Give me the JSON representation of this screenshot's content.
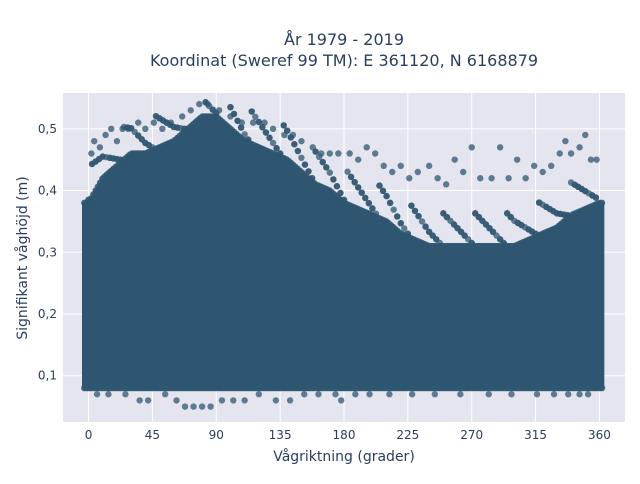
{
  "chart_data": {
    "type": "scatter",
    "title_line1": "År 1979 - 2019",
    "title_line2": "Koordinat (Sweref 99 TM): E 361120, N 6168879",
    "xlabel": "Vågriktning (grader)",
    "ylabel": "Signifikant våghöjd (m)",
    "xlim": [
      -18,
      378
    ],
    "ylim": [
      0.025,
      0.558
    ],
    "x_ticks": [
      0,
      45,
      90,
      135,
      180,
      225,
      270,
      315,
      360
    ],
    "x_tick_labels": [
      "0",
      "45",
      "90",
      "135",
      "180",
      "225",
      "270",
      "315",
      "360"
    ],
    "y_ticks": [
      0.1,
      0.2,
      0.3,
      0.4,
      0.5
    ],
    "y_tick_labels": [
      "0,1",
      "0,2",
      "0,3",
      "0,4",
      "0,5"
    ],
    "grid": true,
    "marker_color": "#2f5670",
    "plot_background": "#e5e5ef",
    "dense_band": {
      "x": [
        0,
        10,
        20,
        30,
        40,
        50,
        60,
        70,
        80,
        90,
        100,
        110,
        120,
        130,
        140,
        150,
        160,
        170,
        180,
        190,
        200,
        210,
        220,
        230,
        240,
        250,
        260,
        270,
        280,
        290,
        300,
        310,
        320,
        330,
        340,
        350,
        360
      ],
      "y_low": [
        0.08,
        0.08,
        0.08,
        0.08,
        0.08,
        0.08,
        0.08,
        0.08,
        0.08,
        0.08,
        0.08,
        0.08,
        0.08,
        0.08,
        0.08,
        0.08,
        0.08,
        0.08,
        0.08,
        0.08,
        0.08,
        0.08,
        0.08,
        0.08,
        0.08,
        0.08,
        0.08,
        0.08,
        0.08,
        0.08,
        0.08,
        0.08,
        0.08,
        0.08,
        0.08,
        0.08,
        0.08
      ],
      "y_high": [
        0.38,
        0.42,
        0.44,
        0.46,
        0.46,
        0.47,
        0.48,
        0.5,
        0.52,
        0.52,
        0.5,
        0.48,
        0.47,
        0.46,
        0.45,
        0.43,
        0.41,
        0.4,
        0.38,
        0.37,
        0.36,
        0.35,
        0.33,
        0.32,
        0.31,
        0.31,
        0.31,
        0.31,
        0.31,
        0.31,
        0.31,
        0.32,
        0.33,
        0.34,
        0.36,
        0.37,
        0.38
      ]
    },
    "outliers": [
      [
        2,
        0.46
      ],
      [
        4,
        0.48
      ],
      [
        8,
        0.47
      ],
      [
        12,
        0.49
      ],
      [
        16,
        0.5
      ],
      [
        20,
        0.48
      ],
      [
        24,
        0.5
      ],
      [
        28,
        0.5
      ],
      [
        35,
        0.51
      ],
      [
        40,
        0.5
      ],
      [
        46,
        0.51
      ],
      [
        52,
        0.5
      ],
      [
        58,
        0.51
      ],
      [
        66,
        0.52
      ],
      [
        72,
        0.53
      ],
      [
        78,
        0.54
      ],
      [
        84,
        0.54
      ],
      [
        92,
        0.53
      ],
      [
        100,
        0.52
      ],
      [
        108,
        0.51
      ],
      [
        116,
        0.51
      ],
      [
        124,
        0.51
      ],
      [
        130,
        0.5
      ],
      [
        138,
        0.49
      ],
      [
        144,
        0.49
      ],
      [
        150,
        0.48
      ],
      [
        158,
        0.47
      ],
      [
        164,
        0.46
      ],
      [
        170,
        0.46
      ],
      [
        176,
        0.46
      ],
      [
        184,
        0.46
      ],
      [
        190,
        0.45
      ],
      [
        196,
        0.47
      ],
      [
        202,
        0.46
      ],
      [
        208,
        0.44
      ],
      [
        214,
        0.43
      ],
      [
        220,
        0.44
      ],
      [
        226,
        0.42
      ],
      [
        232,
        0.43
      ],
      [
        240,
        0.44
      ],
      [
        246,
        0.42
      ],
      [
        252,
        0.41
      ],
      [
        258,
        0.45
      ],
      [
        264,
        0.43
      ],
      [
        270,
        0.47
      ],
      [
        276,
        0.42
      ],
      [
        284,
        0.42
      ],
      [
        290,
        0.47
      ],
      [
        296,
        0.42
      ],
      [
        302,
        0.45
      ],
      [
        308,
        0.42
      ],
      [
        314,
        0.44
      ],
      [
        320,
        0.43
      ],
      [
        326,
        0.44
      ],
      [
        332,
        0.46
      ],
      [
        336,
        0.48
      ],
      [
        340,
        0.46
      ],
      [
        346,
        0.47
      ],
      [
        350,
        0.49
      ],
      [
        354,
        0.45
      ],
      [
        358,
        0.45
      ],
      [
        6,
        0.07
      ],
      [
        14,
        0.07
      ],
      [
        26,
        0.07
      ],
      [
        36,
        0.06
      ],
      [
        42,
        0.06
      ],
      [
        54,
        0.07
      ],
      [
        62,
        0.06
      ],
      [
        68,
        0.05
      ],
      [
        74,
        0.05
      ],
      [
        80,
        0.05
      ],
      [
        86,
        0.05
      ],
      [
        94,
        0.06
      ],
      [
        102,
        0.06
      ],
      [
        110,
        0.06
      ],
      [
        120,
        0.07
      ],
      [
        132,
        0.06
      ],
      [
        142,
        0.06
      ],
      [
        152,
        0.07
      ],
      [
        162,
        0.07
      ],
      [
        174,
        0.07
      ],
      [
        178,
        0.06
      ],
      [
        188,
        0.07
      ],
      [
        198,
        0.07
      ],
      [
        212,
        0.07
      ],
      [
        228,
        0.07
      ],
      [
        244,
        0.07
      ],
      [
        262,
        0.07
      ],
      [
        282,
        0.07
      ],
      [
        298,
        0.07
      ],
      [
        316,
        0.07
      ],
      [
        328,
        0.07
      ],
      [
        338,
        0.07
      ],
      [
        346,
        0.07
      ],
      [
        352,
        0.07
      ]
    ]
  }
}
